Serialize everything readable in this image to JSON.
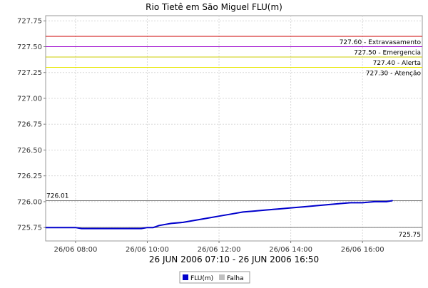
{
  "chart_data": {
    "type": "line",
    "title": "Rio Tietê em São Miguel FLU(m)",
    "xlabel": "26 JUN 2006 07:10 - 26 JUN 2006 16:50",
    "ylabel": "",
    "ylim": [
      725.62,
      727.8
    ],
    "xlim": [
      "2006-06-26 07:10",
      "2006-06-26 17:40"
    ],
    "y_ticks": [
      "725.75",
      "726.00",
      "726.25",
      "726.50",
      "726.75",
      "727.00",
      "727.25",
      "727.50",
      "727.75"
    ],
    "x_ticks": [
      {
        "t": "2006-06-26 08:00",
        "label": "26/06 08:00"
      },
      {
        "t": "2006-06-26 10:00",
        "label": "26/06 10:00"
      },
      {
        "t": "2006-06-26 12:00",
        "label": "26/06 12:00"
      },
      {
        "t": "2006-06-26 14:00",
        "label": "26/06 14:00"
      },
      {
        "t": "2006-06-26 16:00",
        "label": "26/06 16:00"
      }
    ],
    "grid": true,
    "legend_position": "bottom-center",
    "series": [
      {
        "name": "FLU(m)",
        "color": "#0000cc",
        "x": [
          "2006-06-26 07:10",
          "2006-06-26 07:30",
          "2006-06-26 08:00",
          "2006-06-26 08:10",
          "2006-06-26 08:30",
          "2006-06-26 09:00",
          "2006-06-26 09:30",
          "2006-06-26 09:50",
          "2006-06-26 10:00",
          "2006-06-26 10:10",
          "2006-06-26 10:20",
          "2006-06-26 10:40",
          "2006-06-26 11:00",
          "2006-06-26 11:20",
          "2006-06-26 11:40",
          "2006-06-26 12:00",
          "2006-06-26 12:20",
          "2006-06-26 12:40",
          "2006-06-26 13:00",
          "2006-06-26 13:20",
          "2006-06-26 13:40",
          "2006-06-26 14:00",
          "2006-06-26 14:20",
          "2006-06-26 14:40",
          "2006-06-26 15:00",
          "2006-06-26 15:20",
          "2006-06-26 15:40",
          "2006-06-26 16:00",
          "2006-06-26 16:20",
          "2006-06-26 16:40",
          "2006-06-26 16:50"
        ],
        "values": [
          725.75,
          725.75,
          725.75,
          725.74,
          725.74,
          725.74,
          725.74,
          725.74,
          725.75,
          725.75,
          725.77,
          725.79,
          725.8,
          725.82,
          725.84,
          725.86,
          725.88,
          725.9,
          725.91,
          725.92,
          725.93,
          725.94,
          725.95,
          725.96,
          725.97,
          725.98,
          725.99,
          725.99,
          726.0,
          726.0,
          726.01
        ]
      },
      {
        "name": "Falha",
        "color": "#c0c0c0",
        "x": [],
        "values": []
      }
    ],
    "reference_lines": [
      {
        "value": 727.6,
        "label": "727.60 - Extravasamento",
        "color": "#cc0000"
      },
      {
        "value": 727.5,
        "label": "727.50 - Emergencia",
        "color": "#9900cc"
      },
      {
        "value": 727.4,
        "label": "727.40 - Alerta",
        "color": "#cccc00"
      },
      {
        "value": 727.3,
        "label": "727.30 - Atenção",
        "color": "#e8e800"
      }
    ],
    "extent_lines": [
      {
        "value": 726.01,
        "label": "726.01",
        "color": "#777777"
      },
      {
        "value": 725.75,
        "label": "725.75",
        "color": "#777777"
      }
    ]
  }
}
